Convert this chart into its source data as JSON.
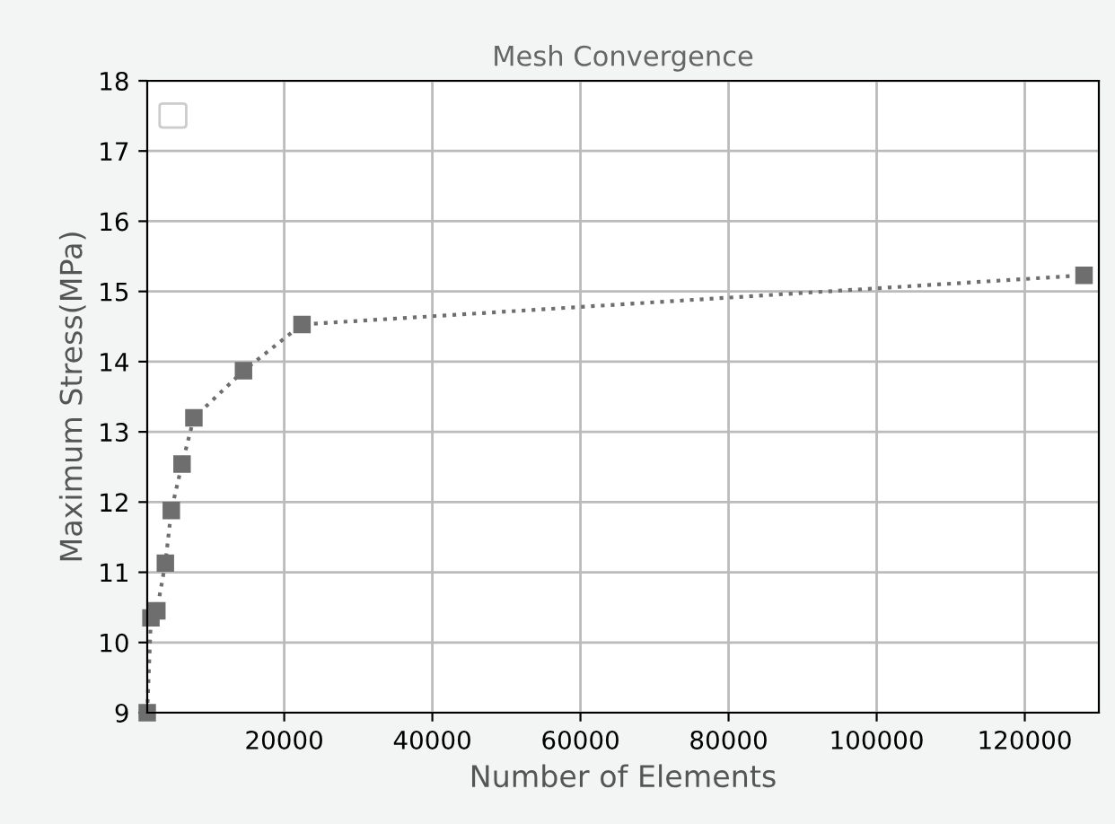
{
  "chart_data": {
    "type": "line",
    "title": "Mesh Convergence",
    "xlabel": "Number of Elements",
    "ylabel": "Maximum Stress(MPa)",
    "x": [
      1500,
      2000,
      2800,
      3950,
      4750,
      6200,
      7800,
      14500,
      22400,
      128000
    ],
    "series": [
      {
        "color": "#6e6e6e",
        "values": [
          9.0,
          10.35,
          10.45,
          11.13,
          11.88,
          12.54,
          13.2,
          13.87,
          14.53,
          15.23
        ]
      }
    ],
    "xlim": [
      1500,
      130000
    ],
    "xticks": [
      20000,
      40000,
      60000,
      80000,
      100000,
      120000
    ],
    "ylim": [
      9,
      18
    ],
    "yticks": [
      9,
      10,
      11,
      12,
      13,
      14,
      15,
      16,
      17,
      18
    ],
    "grid": true,
    "marker": "square",
    "line_style": "dotted"
  }
}
